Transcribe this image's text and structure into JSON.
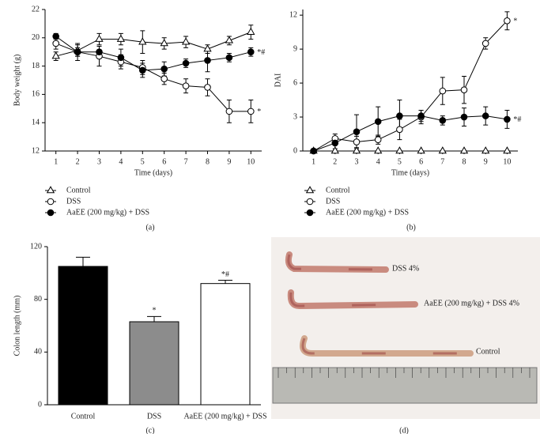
{
  "chart_data": [
    {
      "type": "line",
      "label": "(a)",
      "xlabel": "Time (days)",
      "ylabel": "Body weight (g)",
      "x": [
        1,
        2,
        3,
        4,
        5,
        6,
        7,
        8,
        9,
        10
      ],
      "xlim": [
        0.5,
        10.5
      ],
      "xticks": [
        1,
        2,
        3,
        4,
        5,
        6,
        7,
        8,
        9,
        10
      ],
      "ylim": [
        12,
        22
      ],
      "yticks": [
        12,
        14,
        16,
        18,
        20,
        22
      ],
      "series": [
        {
          "name": "Control",
          "color": "#000000",
          "marker": "triangle-open",
          "values": [
            18.7,
            19.1,
            19.9,
            19.9,
            19.7,
            19.6,
            19.7,
            19.2,
            19.8,
            20.4
          ],
          "errors": [
            0.3,
            0.4,
            0.4,
            0.4,
            0.8,
            0.4,
            0.4,
            0.3,
            0.3,
            0.5
          ]
        },
        {
          "name": "DSS",
          "color": "#000000",
          "marker": "circle-open",
          "values": [
            19.6,
            19.0,
            18.7,
            18.3,
            17.9,
            17.1,
            16.6,
            16.5,
            14.8,
            14.8
          ],
          "errors": [
            0.4,
            0.6,
            0.7,
            0.5,
            0.5,
            0.4,
            0.5,
            0.6,
            0.8,
            0.8
          ],
          "annotation": "*"
        },
        {
          "name": "AaEE (200 mg/kg) + DSS",
          "color": "#000000",
          "marker": "circle-filled",
          "values": [
            20.1,
            19.0,
            19.0,
            18.6,
            17.7,
            17.8,
            18.2,
            18.4,
            18.6,
            19.0
          ],
          "errors": [
            0.2,
            0.3,
            0.4,
            0.6,
            0.5,
            0.5,
            0.3,
            0.8,
            0.3,
            0.3
          ],
          "annotation": "*#"
        }
      ]
    },
    {
      "type": "line",
      "label": "(b)",
      "xlabel": "Time (days)",
      "ylabel": "DAI",
      "x": [
        1,
        2,
        3,
        4,
        5,
        6,
        7,
        8,
        9,
        10
      ],
      "xlim": [
        0.5,
        10.5
      ],
      "xticks": [
        1,
        2,
        3,
        4,
        5,
        6,
        7,
        8,
        9,
        10
      ],
      "ylim": [
        0,
        12.5
      ],
      "yticks": [
        0,
        3,
        6,
        9,
        12
      ],
      "series": [
        {
          "name": "Control",
          "color": "#000000",
          "marker": "triangle-open",
          "values": [
            0,
            0,
            0,
            0,
            0,
            0,
            0,
            0,
            0,
            0
          ],
          "errors": [
            0,
            0,
            0,
            0,
            0,
            0,
            0,
            0,
            0,
            0
          ]
        },
        {
          "name": "DSS",
          "color": "#000000",
          "marker": "circle-open",
          "values": [
            0,
            1.1,
            0.8,
            1.0,
            1.9,
            3.0,
            5.3,
            5.4,
            9.5,
            11.5
          ],
          "errors": [
            0.1,
            0.4,
            0.5,
            0.4,
            0.9,
            0.6,
            1.2,
            1.2,
            0.5,
            0.8
          ],
          "annotation": "*"
        },
        {
          "name": "AaEE (200 mg/kg) + DSS",
          "color": "#000000",
          "marker": "circle-filled",
          "values": [
            0,
            0.7,
            1.7,
            2.6,
            3.1,
            3.1,
            2.7,
            3.0,
            3.1,
            2.8
          ],
          "errors": [
            0,
            0.5,
            1.5,
            1.3,
            1.4,
            0.5,
            0.4,
            0.8,
            0.8,
            0.8
          ],
          "annotation": "*#"
        }
      ]
    },
    {
      "type": "bar",
      "label": "(c)",
      "ylabel": "Colon length (mm)",
      "categories": [
        "Control",
        "DSS",
        "AaEE (200 mg/kg) + DSS"
      ],
      "values": [
        105,
        63,
        92
      ],
      "errors": [
        7,
        4,
        2.5
      ],
      "colors": [
        "#000000",
        "#8c8c8c",
        "#ffffff"
      ],
      "value_annotations": [
        null,
        "*",
        "*#"
      ],
      "ylim": [
        0,
        120
      ],
      "yticks": [
        0,
        40,
        80,
        120
      ]
    },
    {
      "type": "image",
      "label": "(d)",
      "labels": [
        "DSS 4%",
        "AaEE (200 mg/kg) + DSS 4%",
        "Control"
      ]
    }
  ]
}
